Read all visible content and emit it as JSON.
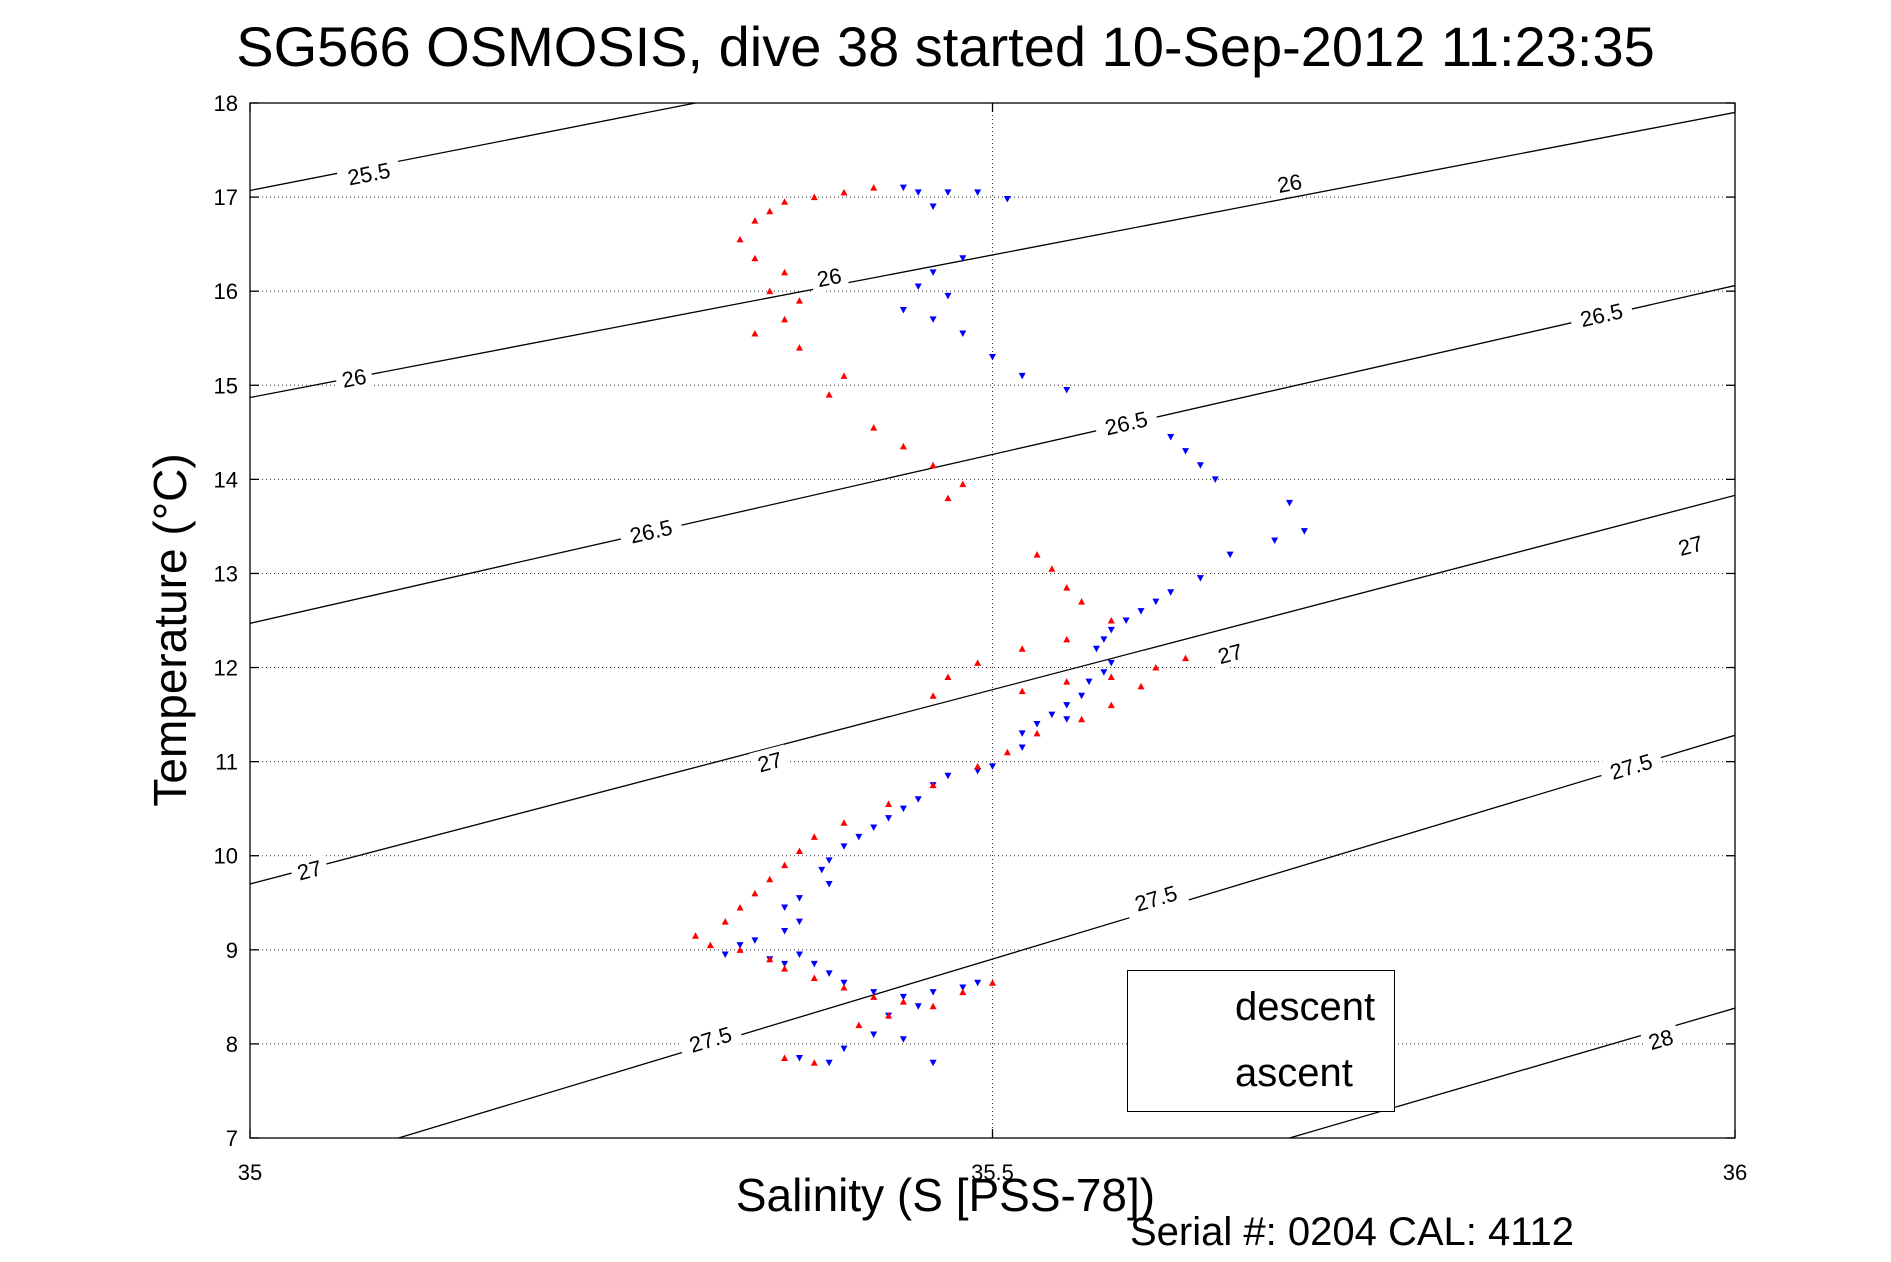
{
  "chart_data": {
    "type": "scatter",
    "title": "SG566 OSMOSIS, dive 38 started 10-Sep-2012 11:23:35",
    "xlabel": "Salinity (S [PSS-78])",
    "ylabel": "Temperature (°C)",
    "xlim": [
      35,
      36
    ],
    "ylim": [
      7,
      18
    ],
    "x_ticks": [
      "35",
      "35.5",
      "36"
    ],
    "y_ticks": [
      "7",
      "8",
      "9",
      "10",
      "11",
      "12",
      "13",
      "14",
      "15",
      "16",
      "17",
      "18"
    ],
    "grid": true,
    "legend_position": "bottom-right",
    "footer": "Serial #: 0204  CAL: 4112",
    "colors": {
      "descent": "#0000ff",
      "ascent": "#ff0000",
      "contour": "#000000"
    },
    "series": [
      {
        "name": "descent",
        "marker": "triangle-down",
        "points": [
          [
            35.44,
            17.1
          ],
          [
            35.45,
            17.05
          ],
          [
            35.47,
            17.05
          ],
          [
            35.49,
            17.05
          ],
          [
            35.51,
            16.98
          ],
          [
            35.46,
            16.9
          ],
          [
            35.48,
            16.35
          ],
          [
            35.46,
            16.2
          ],
          [
            35.45,
            16.05
          ],
          [
            35.47,
            15.95
          ],
          [
            35.44,
            15.8
          ],
          [
            35.46,
            15.7
          ],
          [
            35.48,
            15.55
          ],
          [
            35.5,
            15.3
          ],
          [
            35.52,
            15.1
          ],
          [
            35.55,
            14.95
          ],
          [
            35.62,
            14.45
          ],
          [
            35.63,
            14.3
          ],
          [
            35.64,
            14.15
          ],
          [
            35.65,
            14.0
          ],
          [
            35.7,
            13.75
          ],
          [
            35.71,
            13.45
          ],
          [
            35.69,
            13.35
          ],
          [
            35.66,
            13.2
          ],
          [
            35.64,
            12.95
          ],
          [
            35.62,
            12.8
          ],
          [
            35.61,
            12.7
          ],
          [
            35.6,
            12.6
          ],
          [
            35.59,
            12.5
          ],
          [
            35.58,
            12.4
          ],
          [
            35.575,
            12.3
          ],
          [
            35.57,
            12.2
          ],
          [
            35.58,
            12.05
          ],
          [
            35.575,
            11.95
          ],
          [
            35.565,
            11.85
          ],
          [
            35.56,
            11.7
          ],
          [
            35.55,
            11.6
          ],
          [
            35.54,
            11.5
          ],
          [
            35.53,
            11.4
          ],
          [
            35.52,
            11.3
          ],
          [
            35.55,
            11.45
          ],
          [
            35.52,
            11.15
          ],
          [
            35.5,
            10.95
          ],
          [
            35.49,
            10.9
          ],
          [
            35.47,
            10.85
          ],
          [
            35.46,
            10.75
          ],
          [
            35.45,
            10.6
          ],
          [
            35.44,
            10.5
          ],
          [
            35.43,
            10.4
          ],
          [
            35.42,
            10.3
          ],
          [
            35.41,
            10.2
          ],
          [
            35.4,
            10.1
          ],
          [
            35.39,
            9.95
          ],
          [
            35.385,
            9.85
          ],
          [
            35.39,
            9.7
          ],
          [
            35.37,
            9.55
          ],
          [
            35.36,
            9.45
          ],
          [
            35.37,
            9.3
          ],
          [
            35.36,
            9.2
          ],
          [
            35.34,
            9.1
          ],
          [
            35.33,
            9.05
          ],
          [
            35.32,
            8.95
          ],
          [
            35.35,
            8.9
          ],
          [
            35.36,
            8.85
          ],
          [
            35.37,
            8.95
          ],
          [
            35.38,
            8.85
          ],
          [
            35.39,
            8.75
          ],
          [
            35.4,
            8.65
          ],
          [
            35.42,
            8.55
          ],
          [
            35.44,
            8.5
          ],
          [
            35.46,
            8.55
          ],
          [
            35.48,
            8.6
          ],
          [
            35.49,
            8.65
          ],
          [
            35.45,
            8.4
          ],
          [
            35.43,
            8.3
          ],
          [
            35.42,
            8.1
          ],
          [
            35.44,
            8.05
          ],
          [
            35.4,
            7.95
          ],
          [
            35.37,
            7.85
          ],
          [
            35.39,
            7.8
          ],
          [
            35.46,
            7.8
          ]
        ]
      },
      {
        "name": "ascent",
        "marker": "triangle-up",
        "points": [
          [
            35.42,
            17.1
          ],
          [
            35.4,
            17.05
          ],
          [
            35.38,
            17.0
          ],
          [
            35.36,
            16.95
          ],
          [
            35.35,
            16.85
          ],
          [
            35.34,
            16.75
          ],
          [
            35.33,
            16.55
          ],
          [
            35.34,
            16.35
          ],
          [
            35.36,
            16.2
          ],
          [
            35.35,
            16.0
          ],
          [
            35.37,
            15.9
          ],
          [
            35.36,
            15.7
          ],
          [
            35.34,
            15.55
          ],
          [
            35.37,
            15.4
          ],
          [
            35.4,
            15.1
          ],
          [
            35.39,
            14.9
          ],
          [
            35.42,
            14.55
          ],
          [
            35.44,
            14.35
          ],
          [
            35.46,
            14.15
          ],
          [
            35.48,
            13.95
          ],
          [
            35.47,
            13.8
          ],
          [
            35.53,
            13.2
          ],
          [
            35.54,
            13.05
          ],
          [
            35.55,
            12.85
          ],
          [
            35.56,
            12.7
          ],
          [
            35.58,
            12.5
          ],
          [
            35.55,
            12.3
          ],
          [
            35.52,
            12.2
          ],
          [
            35.49,
            12.05
          ],
          [
            35.47,
            11.9
          ],
          [
            35.46,
            11.7
          ],
          [
            35.52,
            11.75
          ],
          [
            35.55,
            11.85
          ],
          [
            35.58,
            11.9
          ],
          [
            35.61,
            12.0
          ],
          [
            35.63,
            12.1
          ],
          [
            35.6,
            11.8
          ],
          [
            35.58,
            11.6
          ],
          [
            35.56,
            11.45
          ],
          [
            35.53,
            11.3
          ],
          [
            35.51,
            11.1
          ],
          [
            35.49,
            10.95
          ],
          [
            35.46,
            10.75
          ],
          [
            35.43,
            10.55
          ],
          [
            35.4,
            10.35
          ],
          [
            35.38,
            10.2
          ],
          [
            35.37,
            10.05
          ],
          [
            35.36,
            9.9
          ],
          [
            35.35,
            9.75
          ],
          [
            35.34,
            9.6
          ],
          [
            35.33,
            9.45
          ],
          [
            35.32,
            9.3
          ],
          [
            35.3,
            9.15
          ],
          [
            35.31,
            9.05
          ],
          [
            35.33,
            9.0
          ],
          [
            35.35,
            8.9
          ],
          [
            35.36,
            8.8
          ],
          [
            35.38,
            8.7
          ],
          [
            35.4,
            8.6
          ],
          [
            35.42,
            8.5
          ],
          [
            35.44,
            8.45
          ],
          [
            35.46,
            8.4
          ],
          [
            35.48,
            8.55
          ],
          [
            35.5,
            8.65
          ],
          [
            35.43,
            8.3
          ],
          [
            35.41,
            8.2
          ],
          [
            35.36,
            7.85
          ],
          [
            35.38,
            7.8
          ]
        ]
      }
    ],
    "contours": [
      {
        "label": "25.5",
        "x": [
          35.0,
          35.3
        ],
        "y": [
          17.07,
          18.0
        ],
        "label_pos": [
          35.08,
          17.25
        ]
      },
      {
        "label": "26",
        "x": [
          35.0,
          36.0
        ],
        "y": [
          14.87,
          17.9
        ],
        "label_pos": [
          [
            35.07,
            15.08
          ],
          [
            35.39,
            16.15
          ],
          [
            35.7,
            17.15
          ]
        ]
      },
      {
        "label": "26.5",
        "x": [
          35.0,
          36.0
        ],
        "y": [
          12.47,
          16.06
        ],
        "label_pos": [
          [
            35.27,
            13.45
          ],
          [
            35.59,
            14.6
          ],
          [
            35.91,
            15.75
          ]
        ]
      },
      {
        "label": "27",
        "x": [
          35.0,
          36.0
        ],
        "y": [
          9.7,
          13.83
        ],
        "label_pos": [
          [
            35.04,
            9.85
          ],
          [
            35.35,
            11.0
          ],
          [
            35.66,
            12.15
          ],
          [
            35.97,
            13.3
          ]
        ]
      },
      {
        "label": "27.5",
        "x": [
          35.1,
          36.0
        ],
        "y": [
          7.0,
          11.28
        ],
        "label_pos": [
          [
            35.31,
            8.05
          ],
          [
            35.61,
            9.55
          ],
          [
            35.93,
            10.95
          ]
        ]
      },
      {
        "label": "28",
        "x": [
          35.7,
          36.0
        ],
        "y": [
          7.0,
          8.38
        ],
        "label_pos": [
          35.95,
          8.05
        ]
      }
    ]
  }
}
